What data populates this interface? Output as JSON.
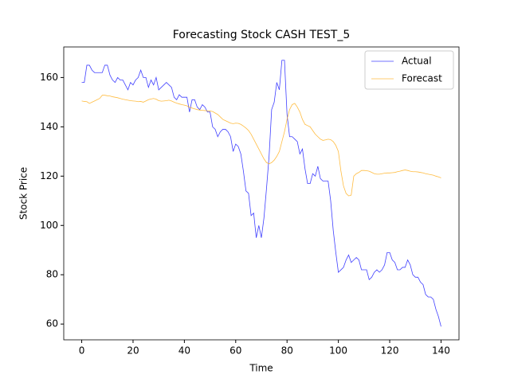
{
  "chart_data": {
    "type": "line",
    "title": "Forecasting Stock CASH TEST_5",
    "x_label": "Time",
    "y_label": "Stock Price",
    "x": [
      0,
      1,
      2,
      3,
      4,
      5,
      6,
      7,
      8,
      9,
      10,
      11,
      12,
      13,
      14,
      15,
      16,
      17,
      18,
      19,
      20,
      21,
      22,
      23,
      24,
      25,
      26,
      27,
      28,
      29,
      30,
      31,
      32,
      33,
      34,
      35,
      36,
      37,
      38,
      39,
      40,
      41,
      42,
      43,
      44,
      45,
      46,
      47,
      48,
      49,
      50,
      51,
      52,
      53,
      54,
      55,
      56,
      57,
      58,
      59,
      60,
      61,
      62,
      63,
      64,
      65,
      66,
      67,
      68,
      69,
      70,
      71,
      72,
      73,
      74,
      75,
      76,
      77,
      78,
      79,
      80,
      81,
      82,
      83,
      84,
      85,
      86,
      87,
      88,
      89,
      90,
      91,
      92,
      93,
      94,
      95,
      96,
      97,
      98,
      99,
      100,
      101,
      102,
      103,
      104,
      105,
      106,
      107,
      108,
      109,
      110,
      111,
      112,
      113,
      114,
      115,
      116,
      117,
      118,
      119,
      120,
      121,
      122,
      123,
      124,
      125,
      126,
      127,
      128,
      129,
      130,
      131,
      132,
      133,
      134,
      135,
      136,
      137,
      138,
      139,
      140
    ],
    "series": [
      {
        "name": "Actual",
        "color": "blue",
        "values": [
          158,
          158,
          165,
          165,
          163,
          162,
          162,
          162,
          162,
          165,
          165,
          161,
          159,
          158,
          160,
          159,
          159,
          157,
          155,
          158,
          157,
          159,
          160,
          163,
          160,
          160,
          156,
          159,
          157,
          160,
          155,
          156,
          157,
          158,
          157,
          156,
          152,
          151,
          153,
          152,
          152,
          152,
          146,
          151,
          151,
          148,
          147,
          149,
          148,
          146,
          146,
          140,
          139,
          136,
          138,
          139,
          139,
          138,
          136,
          130,
          133,
          132,
          129,
          122,
          114,
          113,
          104,
          105,
          95,
          100,
          95,
          103,
          115,
          128,
          147,
          150,
          158,
          155,
          167,
          167,
          145,
          136,
          136,
          135,
          134,
          129,
          131,
          123,
          117,
          117,
          121,
          120,
          124,
          119,
          118,
          118,
          118,
          110,
          98,
          89,
          81,
          82,
          83,
          86,
          88,
          85,
          86,
          87,
          86,
          82,
          82,
          82,
          78,
          79,
          81,
          82,
          81,
          82,
          84,
          89,
          89,
          86,
          85,
          82,
          82,
          83,
          83,
          86,
          84,
          80,
          79,
          79,
          77,
          76,
          72,
          71,
          71,
          70,
          66,
          63,
          59
        ]
      },
      {
        "name": "Forecast",
        "color": "orange",
        "values": [
          150.5,
          150.3,
          150.2,
          149.5,
          150,
          150.5,
          151,
          151.5,
          152.8,
          152.8,
          152.6,
          152.5,
          152.2,
          152,
          151.8,
          151.5,
          151.2,
          151,
          150.8,
          150.6,
          150.5,
          150.4,
          150.2,
          150.3,
          150,
          150.5,
          151,
          151.3,
          151.5,
          151.2,
          150.6,
          150.4,
          150.5,
          150.6,
          150.8,
          150.5,
          150,
          149.6,
          149.3,
          149,
          148.8,
          148.5,
          148,
          147.6,
          147.3,
          147,
          146.8,
          146.7,
          146.6,
          146.5,
          146.4,
          146.2,
          145.6,
          145,
          144,
          143,
          142.5,
          142,
          141.5,
          141.3,
          141.5,
          141.4,
          141,
          140.3,
          139.5,
          138.5,
          137,
          135,
          133,
          131,
          129,
          127,
          125.5,
          125,
          125.5,
          126.5,
          128,
          130,
          134,
          138,
          143,
          147,
          149,
          149.5,
          148,
          146,
          143,
          141,
          140.5,
          140,
          138.5,
          137,
          136,
          135,
          134.5,
          134.7,
          135,
          134.8,
          134,
          132.5,
          130,
          122,
          116,
          113,
          112,
          112.3,
          120,
          121,
          121.5,
          122.3,
          122.3,
          122.2,
          122,
          121.5,
          121,
          120.8,
          120.8,
          121,
          121.2,
          121.3,
          121.3,
          121.4,
          121.5,
          121.8,
          122,
          122.3,
          122.5,
          122.3,
          122,
          121.8,
          121.8,
          121.7,
          121.5,
          121.3,
          121,
          120.8,
          120.6,
          120.4,
          120,
          119.7,
          119.3
        ]
      }
    ],
    "xlim": [
      -7,
      147
    ],
    "ylim": [
      53.6,
      172.4
    ],
    "xticks": [
      0,
      20,
      40,
      60,
      80,
      100,
      120,
      140
    ],
    "yticks": [
      60,
      80,
      100,
      120,
      140,
      160
    ],
    "grid": false,
    "legend": "upper right"
  }
}
